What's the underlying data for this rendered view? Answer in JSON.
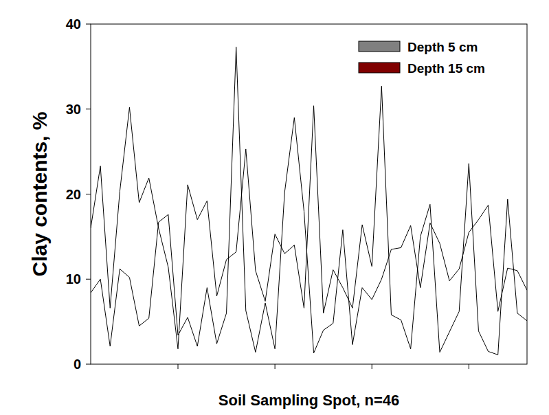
{
  "chart_data": {
    "type": "line",
    "x_label": "Soil Sampling Spot, n=46",
    "y_label": "Clay contents, %",
    "x": [
      1,
      2,
      3,
      4,
      5,
      6,
      7,
      8,
      9,
      10,
      11,
      12,
      13,
      14,
      15,
      16,
      17,
      18,
      19,
      20,
      21,
      22,
      23,
      24,
      25,
      26,
      27,
      28,
      29,
      30,
      31,
      32,
      33,
      34,
      35,
      36,
      37,
      38,
      39,
      40,
      41,
      42,
      43,
      44,
      45,
      46
    ],
    "series": [
      {
        "name": "Depth 5 cm",
        "color": "#808080",
        "values": [
          16,
          23.3,
          6.6,
          20.3,
          30.2,
          19,
          21.9,
          16,
          11.4,
          1.8,
          21.1,
          17,
          19.2,
          8,
          12.3,
          13.2,
          25.3,
          11,
          7.4,
          15.3,
          13,
          14,
          6.6,
          30.4,
          6,
          11.1,
          9,
          6.6,
          16.4,
          11.5,
          32.7,
          5.8,
          5.2,
          1.8,
          15,
          18.8,
          1.4,
          3.8,
          6.2,
          23.6,
          3.9,
          1.5,
          1.1,
          19.4,
          6,
          5.1
        ]
      },
      {
        "name": "Depth 15 cm",
        "color": "#800000",
        "values": [
          8.4,
          10,
          2.1,
          11.2,
          10.2,
          4.5,
          5.4,
          16.7,
          17.6,
          3.4,
          5.5,
          2.1,
          9,
          2.4,
          6,
          37.3,
          6.3,
          1.4,
          7.2,
          1.8,
          20.2,
          29,
          18,
          1.3,
          4,
          4.8,
          15.8,
          2.3,
          9,
          7.6,
          10,
          13.5,
          13.7,
          16.3,
          9,
          16.6,
          14.2,
          9.8,
          11.2,
          15.5,
          17,
          18.7,
          6.2,
          11.3,
          11,
          8.7
        ]
      }
    ],
    "xlim": [
      1,
      46
    ],
    "xticks": [
      10,
      20,
      30,
      40
    ],
    "ylim": [
      0,
      40
    ],
    "yticks": [
      0,
      10,
      20,
      30,
      40
    ],
    "tick_labels": "y",
    "legend": "upper right",
    "grid": false
  }
}
